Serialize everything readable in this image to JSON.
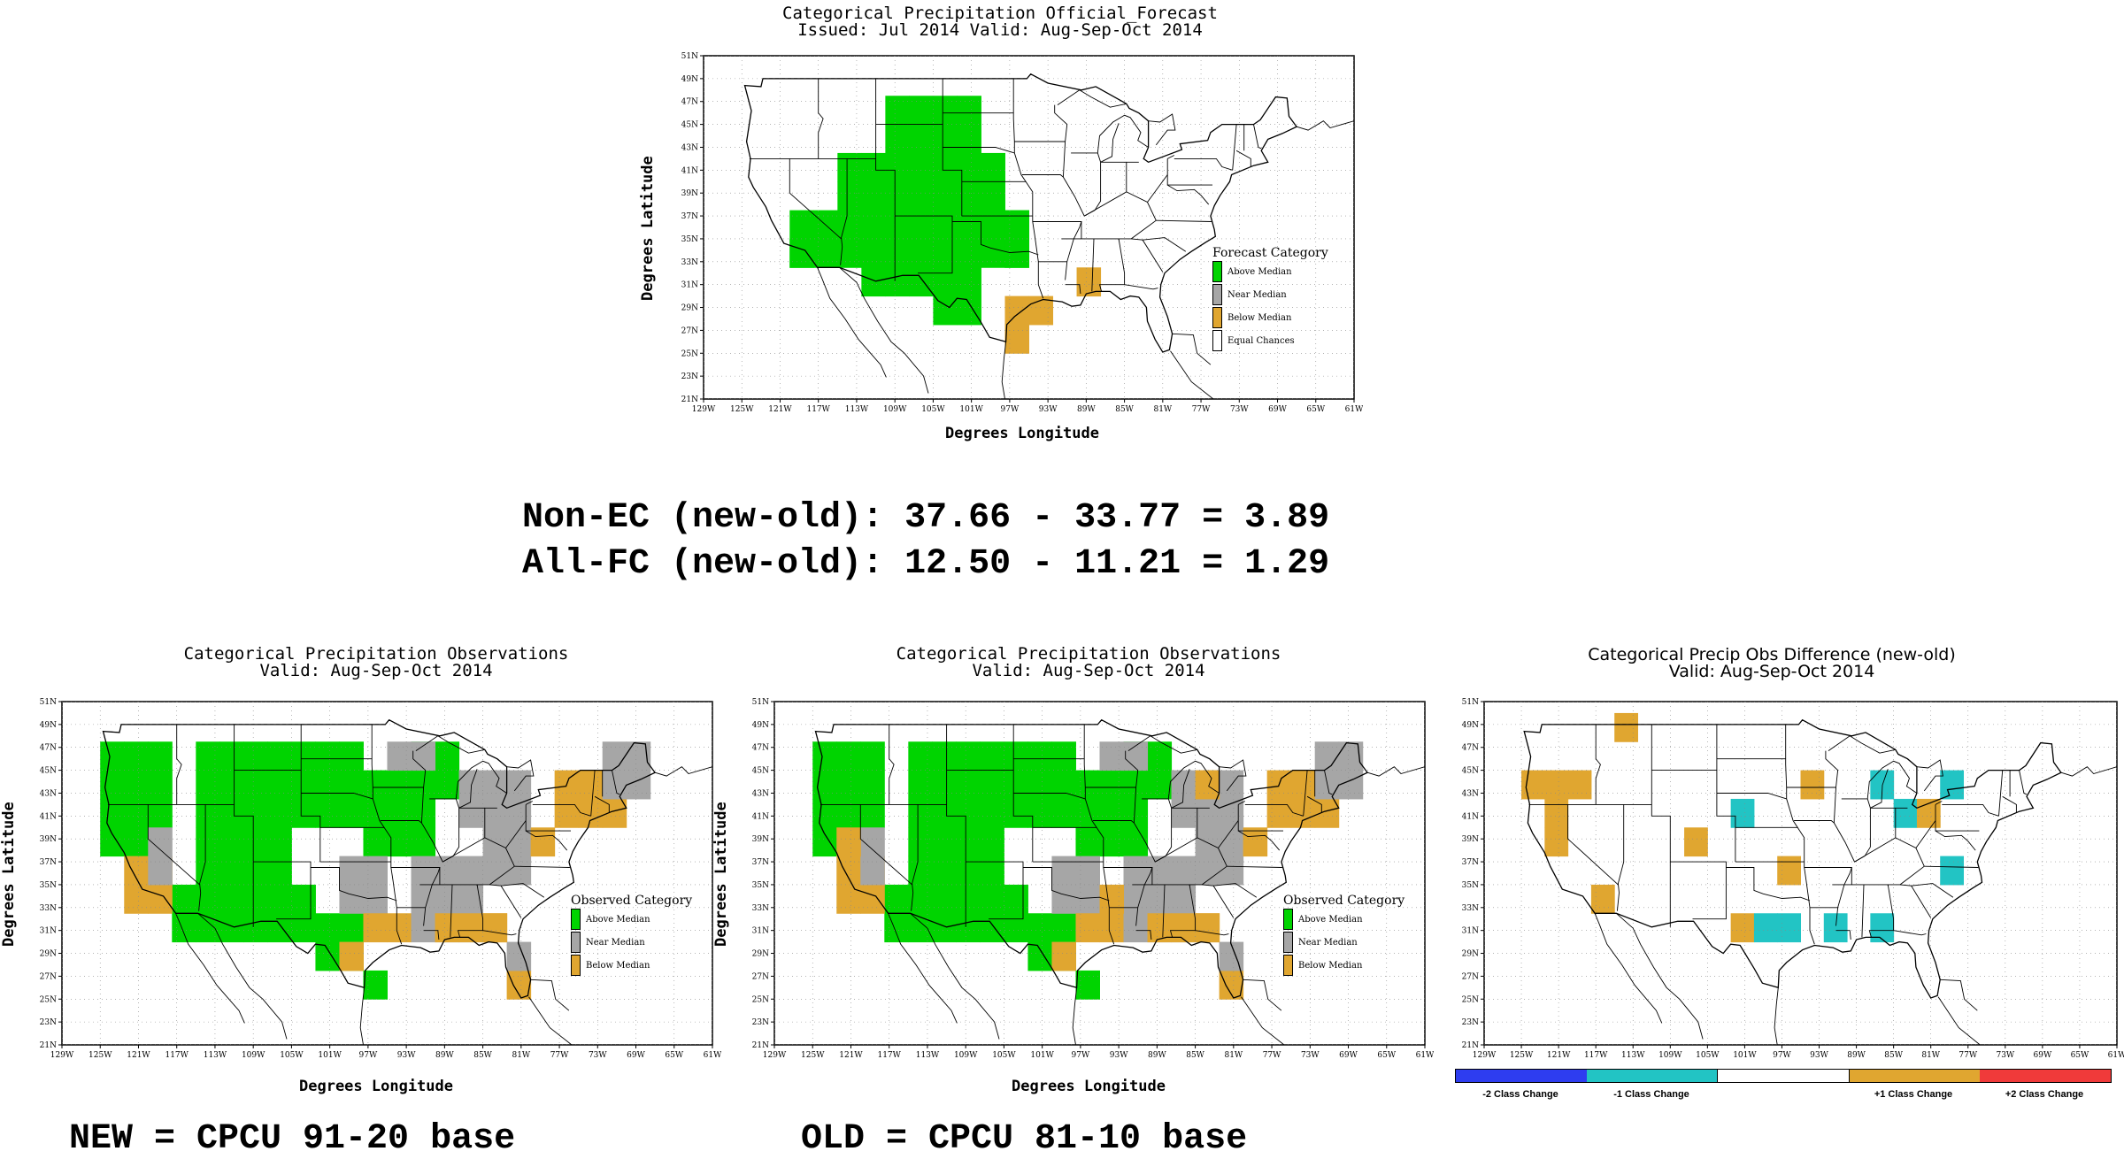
{
  "top": {
    "title1": "Categorical Precipitation Official_Forecast",
    "title2": "Issued: Jul 2014 Valid: Aug-Sep-Oct 2014",
    "ylabel": "Degrees Latitude",
    "xlabel": "Degrees Longitude",
    "legend_title": "Forecast Category",
    "legend": [
      "Above Median",
      "Near Median",
      "Below Median",
      "Equal Chances"
    ]
  },
  "stats": {
    "line1": "Non-EC (new-old): 37.66 - 33.77 = 3.89",
    "line2": "All-FC (new-old): 12.50 - 11.21 = 1.29"
  },
  "left": {
    "title1": "Categorical Precipitation Observations",
    "title2": "Valid: Aug-Sep-Oct 2014",
    "ylabel": "Degrees Latitude",
    "xlabel": "Degrees Longitude",
    "legend_title": "Observed Category",
    "legend": [
      "Above Median",
      "Near Median",
      "Below Median"
    ],
    "footer": "NEW = CPCU 91-20 base"
  },
  "middle": {
    "title1": "Categorical Precipitation Observations",
    "title2": "Valid: Aug-Sep-Oct 2014",
    "ylabel": "Degrees Latitude",
    "xlabel": "Degrees Longitude",
    "legend_title": "Observed Category",
    "legend": [
      "Above Median",
      "Near Median",
      "Below Median"
    ],
    "footer": "OLD = CPCU 81-10 base"
  },
  "right": {
    "title1": "Categorical Precip Obs Difference (new-old)",
    "title2": "Valid: Aug-Sep-Oct 2014",
    "colorbar": [
      "-2 Class Change",
      "-1 Class Change",
      "",
      "+1 Class Change",
      "+2 Class Change"
    ]
  },
  "axes": {
    "lat_ticks": [
      "51N",
      "49N",
      "47N",
      "45N",
      "43N",
      "41N",
      "39N",
      "37N",
      "35N",
      "33N",
      "31N",
      "29N",
      "27N",
      "25N",
      "23N",
      "21N"
    ],
    "lon_ticks": [
      "129W",
      "125W",
      "121W",
      "117W",
      "113W",
      "109W",
      "105W",
      "101W",
      "97W",
      "93W",
      "89W",
      "85W",
      "81W",
      "77W",
      "73W",
      "69W",
      "65W",
      "61W"
    ]
  },
  "colors": {
    "above": "#00d400",
    "near": "#a6a6a6",
    "below": "#e0a630",
    "equal": "#ffffff",
    "minus2": "#2e3df0",
    "minus1": "#22c4c4",
    "plus1": "#e0a630",
    "plus2": "#f03a3a"
  }
}
